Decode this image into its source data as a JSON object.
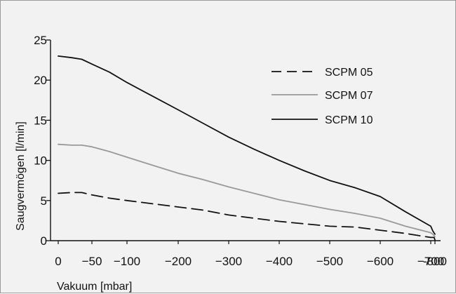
{
  "chart_data": {
    "type": "line",
    "title": "",
    "xlabel": "Vakuum [mbar]",
    "ylabel": "Saugvermögen [l/min]",
    "xlim": [
      0,
      -800
    ],
    "ylim": [
      0,
      25
    ],
    "x_tick_values": [
      0,
      -50,
      -100,
      -200,
      -300,
      -400,
      -500,
      -600,
      -700,
      -800
    ],
    "x_tick_labels": [
      "0",
      "−50",
      "−100",
      "−200",
      "−300",
      "−400",
      "−500",
      "−600",
      "−700",
      "-800"
    ],
    "y_ticks": [
      "0",
      "5",
      "10",
      "15",
      "20",
      "25"
    ],
    "grid": false,
    "legend_position": "top-right",
    "series": [
      {
        "name": "SCPM 05",
        "color": "#111111",
        "style": "dashed",
        "x": [
          0,
          -20,
          -35,
          -50,
          -75,
          -100,
          -150,
          -200,
          -250,
          -300,
          -350,
          -400,
          -450,
          -500,
          -550,
          -600,
          -650,
          -700,
          -750,
          -780,
          -800
        ],
        "y": [
          5.9,
          6.0,
          6.0,
          5.7,
          5.3,
          5.0,
          4.6,
          4.2,
          3.8,
          3.2,
          2.8,
          2.4,
          2.1,
          1.8,
          1.7,
          1.3,
          0.9,
          0.4,
          0.4,
          0.4,
          0.1
        ]
      },
      {
        "name": "SCPM 07",
        "color": "#999999",
        "style": "solid",
        "x": [
          0,
          -20,
          -35,
          -50,
          -75,
          -100,
          -150,
          -200,
          -250,
          -300,
          -350,
          -400,
          -450,
          -500,
          -550,
          -600,
          -650,
          -700,
          -750,
          -800
        ],
        "y": [
          12.0,
          11.9,
          11.9,
          11.7,
          11.1,
          10.4,
          9.4,
          8.4,
          7.6,
          6.7,
          5.9,
          5.1,
          4.5,
          3.9,
          3.4,
          2.8,
          1.8,
          1.0,
          0.8,
          0.5
        ]
      },
      {
        "name": "SCPM 10",
        "color": "#111111",
        "style": "solid",
        "x": [
          0,
          -20,
          -35,
          -50,
          -75,
          -100,
          -150,
          -200,
          -250,
          -300,
          -350,
          -400,
          -450,
          -500,
          -550,
          -600,
          -650,
          -700,
          -750,
          -800
        ],
        "y": [
          23.0,
          22.8,
          22.6,
          22.0,
          21.0,
          19.7,
          18.0,
          16.3,
          14.6,
          12.9,
          11.4,
          10.0,
          8.7,
          7.5,
          6.6,
          5.5,
          3.6,
          1.8,
          1.2,
          0.8
        ]
      }
    ]
  }
}
